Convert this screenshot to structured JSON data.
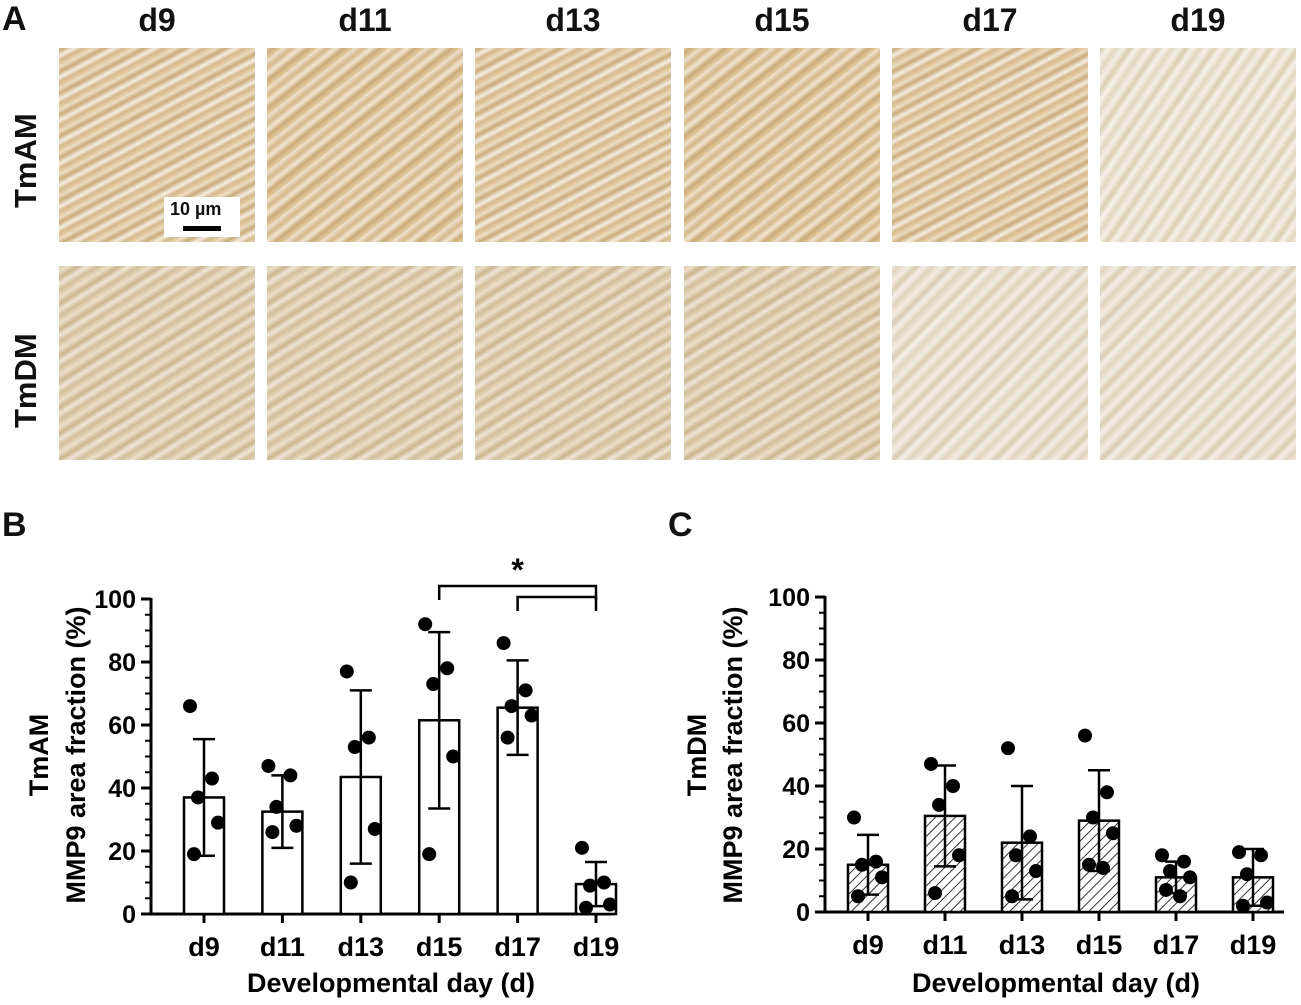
{
  "panel_a": {
    "letter": "A",
    "days": [
      "d9",
      "d11",
      "d13",
      "d15",
      "d17",
      "d19"
    ],
    "rows": [
      "TmAM",
      "TmDM"
    ],
    "scale_bar": "10 µm"
  },
  "chart_data": [
    {
      "panel": "B",
      "type": "bar",
      "title": "",
      "ylabel": "TmAM\nMMP9 area fraction (%)",
      "ylabel_lines": [
        "TmAM",
        "MMP9 area fraction (%)"
      ],
      "xlabel": "Developmental day (d)",
      "categories": [
        "d9",
        "d11",
        "d13",
        "d15",
        "d17",
        "d19"
      ],
      "ylim": [
        0,
        100
      ],
      "yticks": [
        "0",
        "20",
        "40",
        "60",
        "80",
        "100"
      ],
      "fill": "none",
      "series": [
        {
          "values": [
            37,
            32.5,
            43.5,
            61.5,
            65.5,
            9.5
          ],
          "error": [
            18.5,
            11.5,
            27.5,
            28,
            15,
            7
          ],
          "points": [
            [
              66,
              43,
              37,
              29,
              19
            ],
            [
              47,
              44,
              34,
              28,
              26
            ],
            [
              77,
              56,
              53,
              27,
              10
            ],
            [
              92,
              78,
              73,
              50,
              19
            ],
            [
              86,
              71,
              66,
              63,
              56
            ],
            [
              21,
              10,
              9,
              3,
              2
            ]
          ]
        }
      ],
      "annotations": [
        {
          "text": "*",
          "from": "d15",
          "to": "d19"
        },
        {
          "text": "",
          "from": "d17",
          "to": "d19"
        }
      ]
    },
    {
      "panel": "C",
      "type": "bar",
      "title": "",
      "ylabel_lines": [
        "TmDM",
        "MMP9 area fraction (%)"
      ],
      "xlabel": "Developmental day (d)",
      "categories": [
        "d9",
        "d11",
        "d13",
        "d15",
        "d17",
        "d19"
      ],
      "ylim": [
        0,
        100
      ],
      "yticks": [
        "0",
        "20",
        "40",
        "60",
        "80",
        "100"
      ],
      "fill": "hatched",
      "series": [
        {
          "values": [
            15,
            30.5,
            22,
            29,
            11,
            11
          ],
          "error": [
            9.5,
            16,
            18,
            16,
            5,
            9
          ],
          "points": [
            [
              30,
              16,
              15,
              11,
              5
            ],
            [
              47,
              40,
              34,
              18,
              6
            ],
            [
              52,
              24,
              18,
              13,
              5
            ],
            [
              56,
              38,
              30,
              25,
              15,
              14
            ],
            [
              18,
              16,
              13,
              11,
              7,
              5
            ],
            [
              19,
              18,
              12,
              3,
              2
            ]
          ]
        }
      ],
      "annotations": []
    }
  ]
}
